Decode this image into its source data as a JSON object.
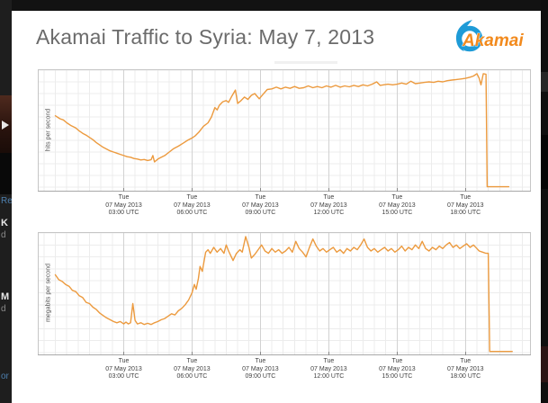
{
  "header": {
    "title": "Akamai Traffic to Syria: May 7, 2013",
    "logo_text": "Akamai"
  },
  "colors": {
    "line_orange": "#EC9A3E",
    "logo_blue": "#1E9BD7",
    "logo_orange": "#F28A1D",
    "title_gray": "#6B6B6B",
    "grid_minor": "#ECECEC",
    "grid_major": "#D2D2D2",
    "plot_border": "#C6C6C6"
  },
  "left_edge_fragments": [
    {
      "text": "Re",
      "color": "#4d7fae",
      "bold": false
    },
    {
      "text": "K",
      "color": "#e8e8e8",
      "bold": true
    },
    {
      "text": "d",
      "color": "#8a8a8a",
      "bold": false
    },
    {
      "text": "M",
      "color": "#e8e8e8",
      "bold": true
    },
    {
      "text": "d",
      "color": "#8a8a8a",
      "bold": false
    },
    {
      "text": "or",
      "color": "#4d7fae",
      "bold": false
    }
  ],
  "chart_data": [
    {
      "type": "line",
      "title": "",
      "ylabel": "hits per second",
      "xlabel": "",
      "x_unit": "hours UTC on 07 May 2013",
      "y_unit": "relative level (axis unlabeled), 0-100",
      "x_range": [
        -0.77,
        20.87
      ],
      "y_range": [
        0,
        100
      ],
      "grid": "on",
      "legend": "none",
      "line_color": "#EC9A3E",
      "x_ticks": [
        {
          "hour": 3,
          "lines": [
            "Tue",
            "07 May 2013",
            "03:00 UTC"
          ]
        },
        {
          "hour": 6,
          "lines": [
            "Tue",
            "07 May 2013",
            "06:00 UTC"
          ]
        },
        {
          "hour": 9,
          "lines": [
            "Tue",
            "07 May 2013",
            "09:00 UTC"
          ]
        },
        {
          "hour": 12,
          "lines": [
            "Tue",
            "07 May 2013",
            "12:00 UTC"
          ]
        },
        {
          "hour": 15,
          "lines": [
            "Tue",
            "07 May 2013",
            "15:00 UTC"
          ]
        },
        {
          "hour": 18,
          "lines": [
            "Tue",
            "07 May 2013",
            "18:00 UTC"
          ]
        }
      ],
      "annotation": "traffic collapses to zero just before 19:00 UTC",
      "points": [
        [
          0,
          61
        ],
        [
          0.2,
          58.5
        ],
        [
          0.35,
          57.5
        ],
        [
          0.5,
          55
        ],
        [
          0.7,
          52.5
        ],
        [
          0.9,
          50.5
        ],
        [
          1.05,
          48
        ],
        [
          1.2,
          46
        ],
        [
          1.35,
          44.5
        ],
        [
          1.5,
          42.5
        ],
        [
          1.65,
          40.5
        ],
        [
          1.8,
          38
        ],
        [
          1.95,
          36
        ],
        [
          2.1,
          34
        ],
        [
          2.25,
          32.5
        ],
        [
          2.4,
          31
        ],
        [
          2.55,
          30
        ],
        [
          2.7,
          29
        ],
        [
          2.85,
          28
        ],
        [
          3.0,
          27
        ],
        [
          3.15,
          26
        ],
        [
          3.3,
          25.5
        ],
        [
          3.45,
          24.5
        ],
        [
          3.6,
          24
        ],
        [
          3.75,
          23.2
        ],
        [
          3.9,
          23.6
        ],
        [
          4.05,
          22.8
        ],
        [
          4.2,
          23.4
        ],
        [
          4.28,
          27
        ],
        [
          4.35,
          21.5
        ],
        [
          4.5,
          24
        ],
        [
          4.65,
          25.5
        ],
        [
          4.8,
          27
        ],
        [
          5.0,
          30
        ],
        [
          5.2,
          33
        ],
        [
          5.4,
          35
        ],
        [
          5.6,
          37.5
        ],
        [
          5.8,
          40
        ],
        [
          6.0,
          42
        ],
        [
          6.15,
          44
        ],
        [
          6.3,
          47
        ],
        [
          6.5,
          52
        ],
        [
          6.7,
          55
        ],
        [
          6.85,
          60
        ],
        [
          7.0,
          68
        ],
        [
          7.1,
          66
        ],
        [
          7.2,
          70
        ],
        [
          7.35,
          73
        ],
        [
          7.5,
          74
        ],
        [
          7.6,
          72.5
        ],
        [
          7.75,
          78
        ],
        [
          7.9,
          83
        ],
        [
          8.0,
          71.5
        ],
        [
          8.15,
          74
        ],
        [
          8.3,
          77
        ],
        [
          8.45,
          75
        ],
        [
          8.6,
          78.5
        ],
        [
          8.75,
          80
        ],
        [
          8.95,
          75.5
        ],
        [
          9.1,
          79
        ],
        [
          9.3,
          83.5
        ],
        [
          9.5,
          84
        ],
        [
          9.7,
          85.5
        ],
        [
          9.9,
          84
        ],
        [
          10.1,
          85.5
        ],
        [
          10.3,
          84.5
        ],
        [
          10.5,
          86
        ],
        [
          10.7,
          84.5
        ],
        [
          10.9,
          85
        ],
        [
          11.1,
          86.5
        ],
        [
          11.3,
          85
        ],
        [
          11.5,
          86
        ],
        [
          11.7,
          85
        ],
        [
          11.9,
          86.5
        ],
        [
          12.1,
          85.5
        ],
        [
          12.3,
          87
        ],
        [
          12.5,
          85.5
        ],
        [
          12.7,
          86.5
        ],
        [
          12.9,
          85.8
        ],
        [
          13.1,
          87
        ],
        [
          13.3,
          86
        ],
        [
          13.5,
          87.5
        ],
        [
          13.7,
          86.5
        ],
        [
          13.9,
          88
        ],
        [
          14.1,
          90
        ],
        [
          14.25,
          87
        ],
        [
          14.4,
          87.5
        ],
        [
          14.6,
          88
        ],
        [
          14.8,
          87.5
        ],
        [
          15.0,
          88
        ],
        [
          15.2,
          89
        ],
        [
          15.4,
          88
        ],
        [
          15.6,
          90.5
        ],
        [
          15.8,
          88.5
        ],
        [
          16.0,
          89
        ],
        [
          16.2,
          89.5
        ],
        [
          16.4,
          90
        ],
        [
          16.6,
          89.5
        ],
        [
          16.8,
          90.5
        ],
        [
          17.0,
          90
        ],
        [
          17.2,
          91
        ],
        [
          17.4,
          91.5
        ],
        [
          17.6,
          92
        ],
        [
          17.8,
          92.5
        ],
        [
          18.0,
          93
        ],
        [
          18.2,
          94
        ],
        [
          18.35,
          95
        ],
        [
          18.5,
          97
        ],
        [
          18.6,
          93
        ],
        [
          18.68,
          87.5
        ],
        [
          18.78,
          97
        ],
        [
          18.9,
          96.5
        ],
        [
          18.95,
          0.3
        ],
        [
          19.1,
          0.3
        ],
        [
          19.4,
          0.3
        ],
        [
          19.7,
          0.3
        ],
        [
          19.9,
          0.3
        ]
      ]
    },
    {
      "type": "line",
      "title": "",
      "ylabel": "megabits per second",
      "xlabel": "",
      "x_unit": "hours UTC on 07 May 2013",
      "y_unit": "relative level (axis unlabeled), 0-100",
      "x_range": [
        -0.77,
        20.87
      ],
      "y_range": [
        0,
        100
      ],
      "grid": "on",
      "legend": "none",
      "line_color": "#EC9A3E",
      "x_ticks": [
        {
          "hour": 3,
          "lines": [
            "Tue",
            "07 May 2013",
            "03:00 UTC"
          ]
        },
        {
          "hour": 6,
          "lines": [
            "Tue",
            "07 May 2013",
            "06:00 UTC"
          ]
        },
        {
          "hour": 9,
          "lines": [
            "Tue",
            "07 May 2013",
            "09:00 UTC"
          ]
        },
        {
          "hour": 12,
          "lines": [
            "Tue",
            "07 May 2013",
            "12:00 UTC"
          ]
        },
        {
          "hour": 15,
          "lines": [
            "Tue",
            "07 May 2013",
            "15:00 UTC"
          ]
        },
        {
          "hour": 18,
          "lines": [
            "Tue",
            "07 May 2013",
            "18:00 UTC"
          ]
        }
      ],
      "annotation": "traffic collapses to zero just after 19:00 UTC",
      "points": [
        [
          0,
          65
        ],
        [
          0.15,
          61
        ],
        [
          0.3,
          59.5
        ],
        [
          0.45,
          57
        ],
        [
          0.6,
          55.5
        ],
        [
          0.75,
          52
        ],
        [
          0.9,
          51
        ],
        [
          1.05,
          47.5
        ],
        [
          1.2,
          46
        ],
        [
          1.35,
          42
        ],
        [
          1.5,
          41
        ],
        [
          1.65,
          38
        ],
        [
          1.8,
          36
        ],
        [
          1.95,
          33
        ],
        [
          2.1,
          31
        ],
        [
          2.25,
          29
        ],
        [
          2.4,
          27.5
        ],
        [
          2.55,
          26
        ],
        [
          2.7,
          25
        ],
        [
          2.85,
          26
        ],
        [
          3.0,
          24
        ],
        [
          3.1,
          25.5
        ],
        [
          3.2,
          24
        ],
        [
          3.3,
          25
        ],
        [
          3.4,
          41
        ],
        [
          3.5,
          27
        ],
        [
          3.6,
          24
        ],
        [
          3.75,
          25
        ],
        [
          3.9,
          23.5
        ],
        [
          4.05,
          24.5
        ],
        [
          4.2,
          23.5
        ],
        [
          4.35,
          25
        ],
        [
          4.5,
          26
        ],
        [
          4.65,
          27.5
        ],
        [
          4.8,
          28.5
        ],
        [
          4.95,
          30.5
        ],
        [
          5.1,
          32.5
        ],
        [
          5.25,
          31.5
        ],
        [
          5.4,
          35
        ],
        [
          5.55,
          37
        ],
        [
          5.7,
          40
        ],
        [
          5.85,
          44
        ],
        [
          6.0,
          50
        ],
        [
          6.1,
          57
        ],
        [
          6.18,
          53
        ],
        [
          6.28,
          62
        ],
        [
          6.35,
          72
        ],
        [
          6.45,
          68
        ],
        [
          6.55,
          79
        ],
        [
          6.6,
          84
        ],
        [
          6.7,
          86
        ],
        [
          6.8,
          83
        ],
        [
          6.95,
          88
        ],
        [
          7.1,
          84
        ],
        [
          7.25,
          87
        ],
        [
          7.4,
          83
        ],
        [
          7.5,
          90
        ],
        [
          7.6,
          85
        ],
        [
          7.7,
          81
        ],
        [
          7.8,
          77
        ],
        [
          7.95,
          83
        ],
        [
          8.1,
          86
        ],
        [
          8.2,
          84
        ],
        [
          8.35,
          97
        ],
        [
          8.5,
          88
        ],
        [
          8.6,
          79
        ],
        [
          8.75,
          82
        ],
        [
          8.9,
          86
        ],
        [
          9.05,
          90
        ],
        [
          9.2,
          85
        ],
        [
          9.35,
          83
        ],
        [
          9.5,
          87
        ],
        [
          9.65,
          84
        ],
        [
          9.8,
          86
        ],
        [
          9.95,
          83
        ],
        [
          10.1,
          85
        ],
        [
          10.25,
          88
        ],
        [
          10.4,
          84
        ],
        [
          10.55,
          93
        ],
        [
          10.7,
          87
        ],
        [
          10.85,
          84
        ],
        [
          11.0,
          80
        ],
        [
          11.15,
          88
        ],
        [
          11.3,
          95
        ],
        [
          11.45,
          89
        ],
        [
          11.6,
          85
        ],
        [
          11.75,
          87
        ],
        [
          11.9,
          84
        ],
        [
          12.05,
          86
        ],
        [
          12.2,
          88
        ],
        [
          12.35,
          84
        ],
        [
          12.5,
          86
        ],
        [
          12.65,
          83
        ],
        [
          12.8,
          87
        ],
        [
          12.95,
          85
        ],
        [
          13.1,
          88
        ],
        [
          13.25,
          86
        ],
        [
          13.4,
          90
        ],
        [
          13.55,
          95
        ],
        [
          13.7,
          88
        ],
        [
          13.85,
          85
        ],
        [
          14.0,
          87
        ],
        [
          14.15,
          84
        ],
        [
          14.3,
          86
        ],
        [
          14.45,
          88
        ],
        [
          14.6,
          85
        ],
        [
          14.75,
          87
        ],
        [
          14.9,
          84
        ],
        [
          15.05,
          86
        ],
        [
          15.2,
          89
        ],
        [
          15.35,
          85
        ],
        [
          15.5,
          88
        ],
        [
          15.65,
          86
        ],
        [
          15.8,
          90
        ],
        [
          15.95,
          87
        ],
        [
          16.1,
          93
        ],
        [
          16.25,
          87
        ],
        [
          16.4,
          85
        ],
        [
          16.55,
          88
        ],
        [
          16.7,
          86
        ],
        [
          16.85,
          89
        ],
        [
          17.0,
          87
        ],
        [
          17.15,
          90
        ],
        [
          17.3,
          92
        ],
        [
          17.45,
          88
        ],
        [
          17.6,
          90
        ],
        [
          17.75,
          87
        ],
        [
          17.9,
          89
        ],
        [
          18.05,
          91
        ],
        [
          18.2,
          88
        ],
        [
          18.35,
          90
        ],
        [
          18.5,
          87
        ],
        [
          18.6,
          85
        ],
        [
          18.75,
          84
        ],
        [
          18.9,
          83
        ],
        [
          19.0,
          83
        ],
        [
          19.06,
          1
        ],
        [
          19.2,
          1
        ],
        [
          19.5,
          1
        ],
        [
          19.8,
          1
        ],
        [
          20.05,
          1
        ]
      ]
    }
  ]
}
